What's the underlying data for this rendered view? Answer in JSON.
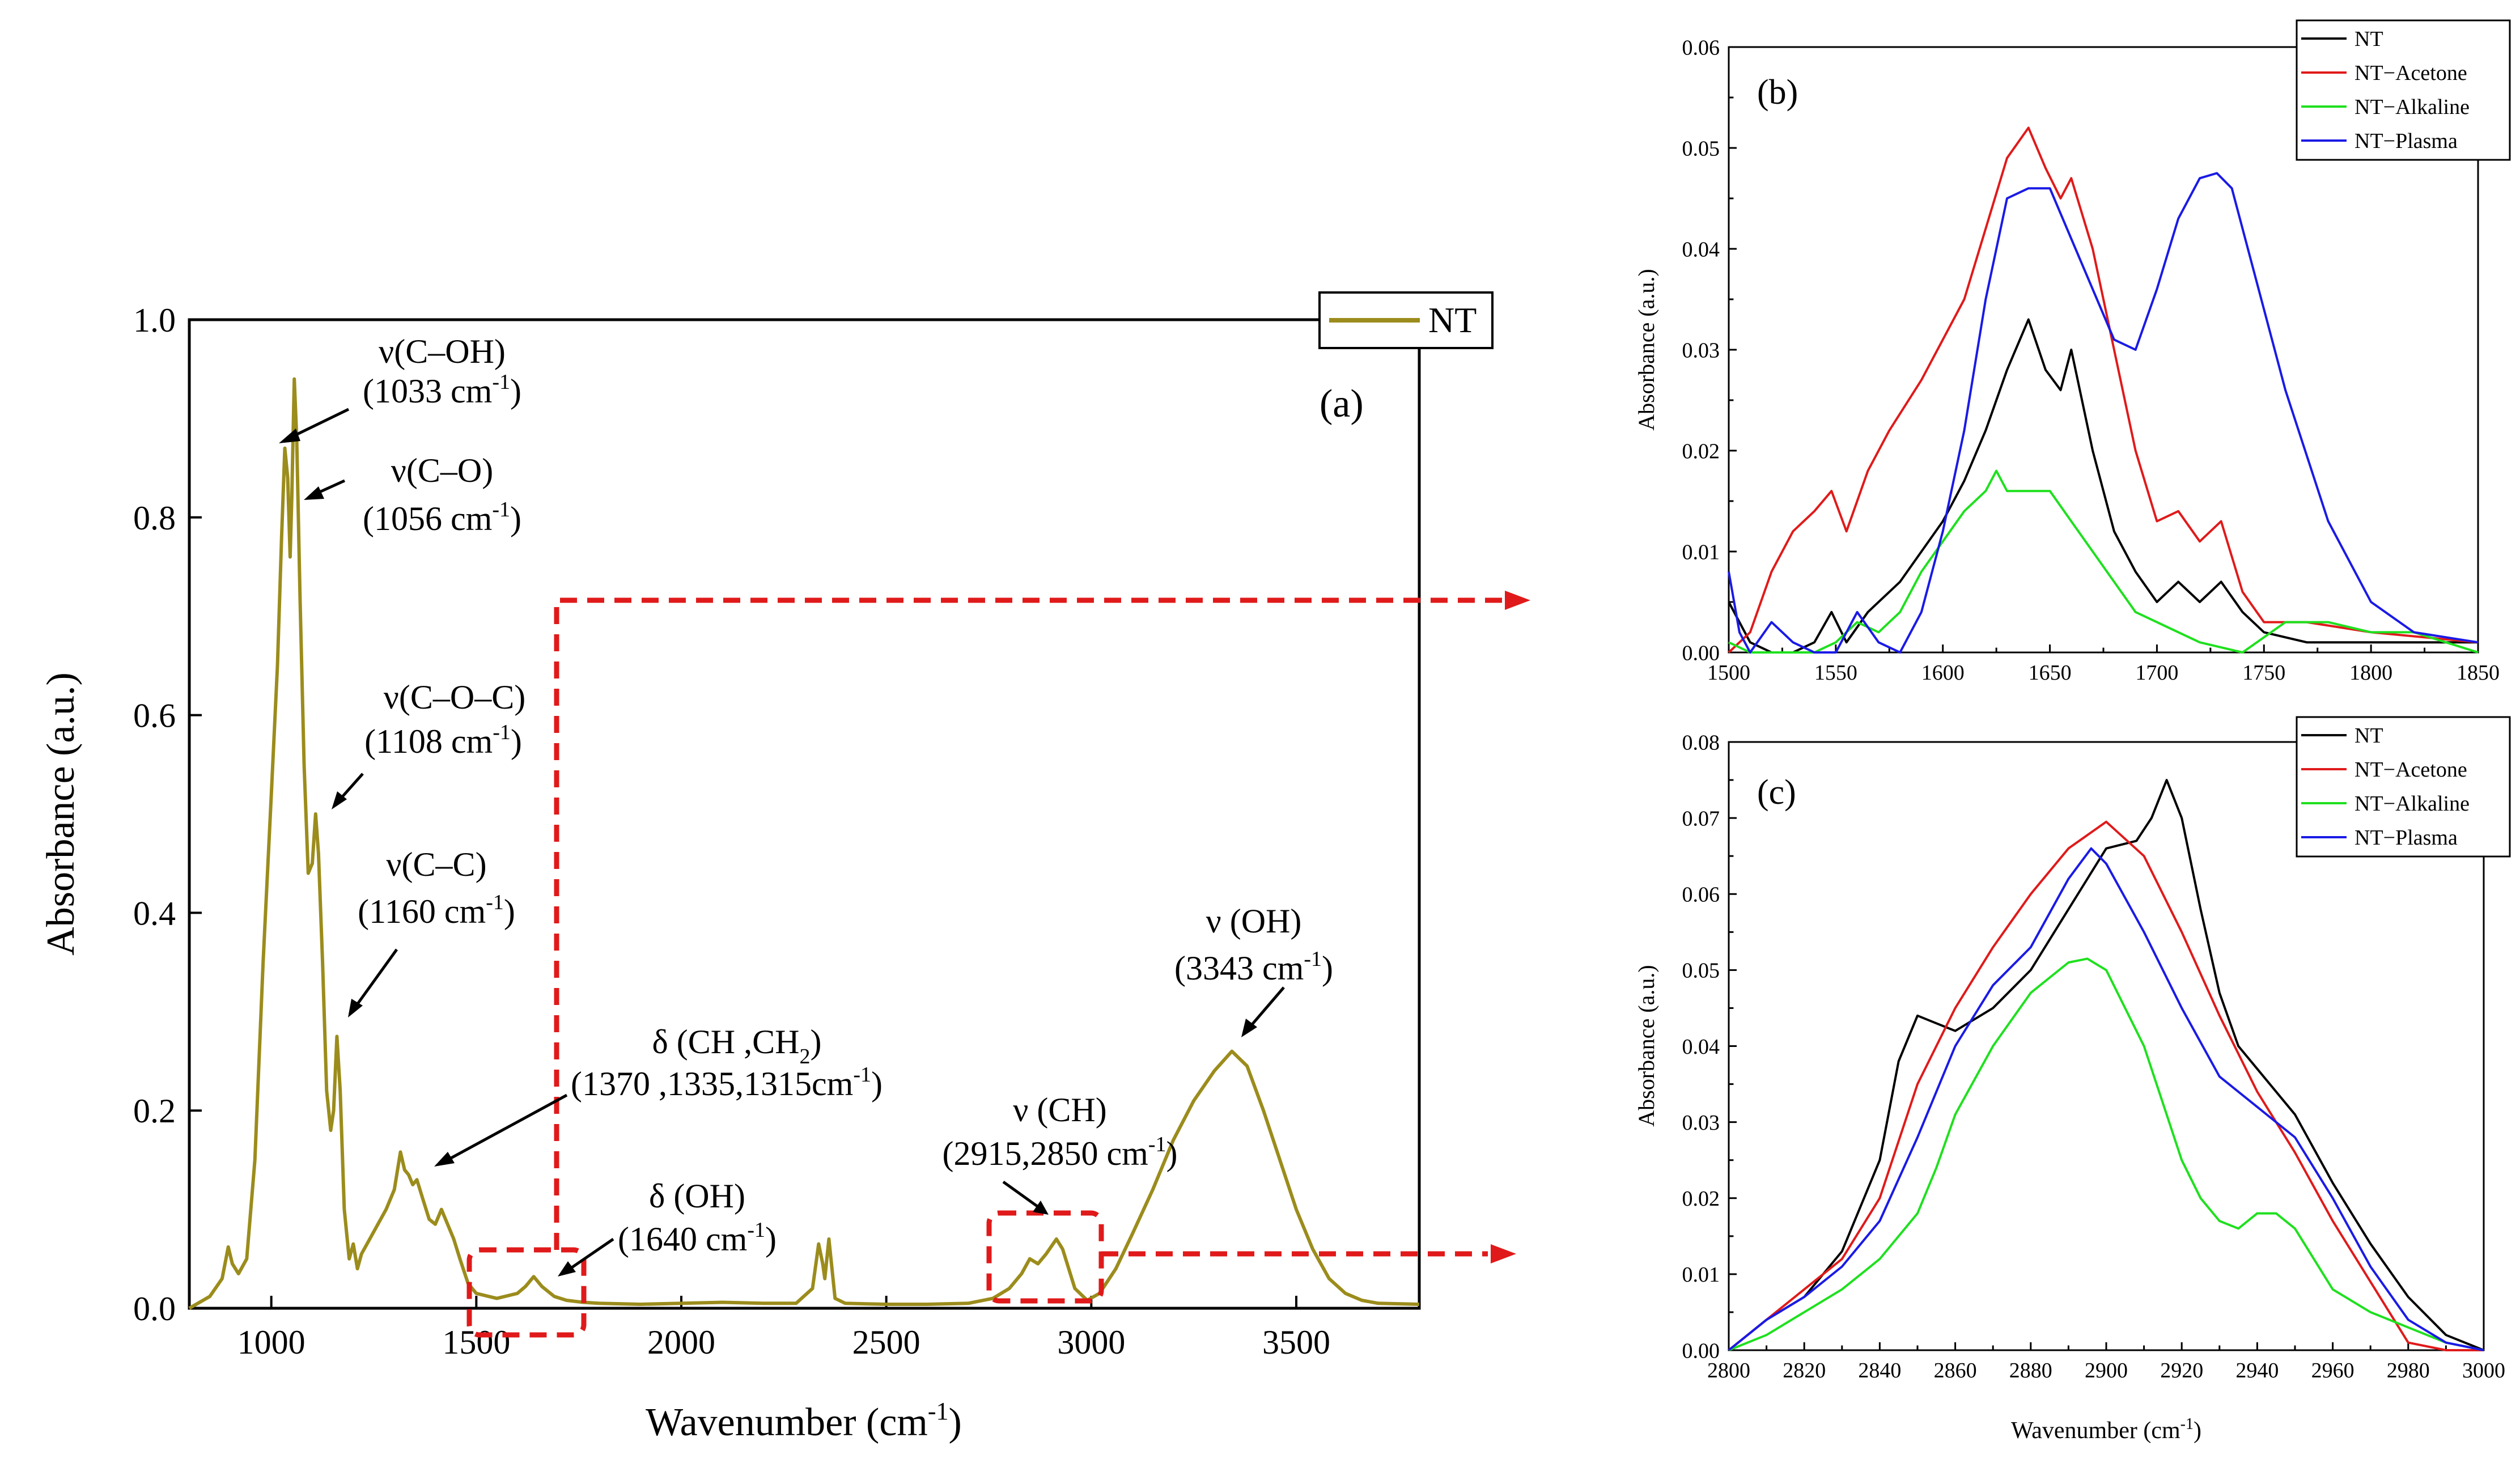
{
  "colors": {
    "nt_main": "#9b8c1c",
    "nt": "#000000",
    "nt_acetone": "#e01a1a",
    "nt_alkaline": "#1ee01e",
    "nt_plasma": "#1a1ae6",
    "zoom": "#e01a1a"
  },
  "chart_data": [
    {
      "id": "a",
      "type": "line",
      "panel_label": "(a)",
      "xlabel": "Wavenumber (cm",
      "xlabel_sup": "-1",
      "xlabel_close": ")",
      "ylabel": "Absorbance (a.u.)",
      "xlim": [
        800,
        3800
      ],
      "ylim": [
        0,
        1.0
      ],
      "xticks": [
        1000,
        1500,
        2000,
        2500,
        3000,
        3500
      ],
      "yticks": [
        0.0,
        0.2,
        0.4,
        0.6,
        0.8,
        1.0
      ],
      "xtick_labels": [
        "1000",
        "1500",
        "2000",
        "2500",
        "3000",
        "3500"
      ],
      "ytick_labels": [
        "0.0",
        "0.2",
        "0.4",
        "0.6",
        "0.8",
        "1.0"
      ],
      "legend": [
        "NT"
      ],
      "series": [
        {
          "name": "NT",
          "x": [
            800,
            850,
            880,
            895,
            905,
            920,
            940,
            960,
            980,
            1000,
            1015,
            1025,
            1033,
            1040,
            1046,
            1050,
            1056,
            1062,
            1070,
            1080,
            1090,
            1100,
            1108,
            1115,
            1125,
            1135,
            1145,
            1152,
            1160,
            1168,
            1178,
            1190,
            1200,
            1210,
            1220,
            1240,
            1260,
            1280,
            1300,
            1315,
            1325,
            1335,
            1345,
            1355,
            1370,
            1385,
            1400,
            1415,
            1430,
            1445,
            1460,
            1480,
            1500,
            1550,
            1600,
            1620,
            1640,
            1660,
            1690,
            1720,
            1760,
            1800,
            1900,
            2000,
            2100,
            2200,
            2280,
            2320,
            2335,
            2345,
            2350,
            2360,
            2375,
            2400,
            2500,
            2600,
            2700,
            2760,
            2800,
            2830,
            2850,
            2870,
            2890,
            2915,
            2930,
            2960,
            2990,
            3020,
            3060,
            3100,
            3150,
            3200,
            3250,
            3300,
            3343,
            3380,
            3420,
            3460,
            3500,
            3540,
            3580,
            3620,
            3660,
            3700,
            3800
          ],
          "values": [
            0.0,
            0.012,
            0.03,
            0.062,
            0.045,
            0.035,
            0.05,
            0.15,
            0.35,
            0.52,
            0.65,
            0.78,
            0.87,
            0.84,
            0.76,
            0.82,
            0.94,
            0.88,
            0.72,
            0.55,
            0.44,
            0.45,
            0.5,
            0.46,
            0.35,
            0.22,
            0.18,
            0.2,
            0.275,
            0.22,
            0.1,
            0.05,
            0.065,
            0.04,
            0.055,
            0.07,
            0.085,
            0.1,
            0.12,
            0.158,
            0.14,
            0.135,
            0.125,
            0.13,
            0.11,
            0.09,
            0.085,
            0.1,
            0.085,
            0.07,
            0.05,
            0.025,
            0.015,
            0.01,
            0.015,
            0.022,
            0.032,
            0.022,
            0.012,
            0.008,
            0.006,
            0.005,
            0.004,
            0.005,
            0.006,
            0.005,
            0.005,
            0.02,
            0.065,
            0.045,
            0.03,
            0.07,
            0.01,
            0.005,
            0.004,
            0.004,
            0.005,
            0.01,
            0.02,
            0.035,
            0.05,
            0.045,
            0.055,
            0.07,
            0.06,
            0.02,
            0.008,
            0.015,
            0.04,
            0.075,
            0.12,
            0.17,
            0.21,
            0.24,
            0.26,
            0.245,
            0.2,
            0.15,
            0.1,
            0.06,
            0.03,
            0.015,
            0.008,
            0.005,
            0.004
          ]
        }
      ],
      "annotations": [
        {
          "line1": "ν(C–OH)",
          "line2": "(1033 cm",
          "sup": "-1",
          "close": ")"
        },
        {
          "line1": "ν(C–O)",
          "line2": "(1056 cm",
          "sup": "-1",
          "close": ")"
        },
        {
          "line1": "ν(C–O–C)",
          "line2": "(1108 cm",
          "sup": "-1",
          "close": ")"
        },
        {
          "line1": "ν(C–C)",
          "line2": "(1160 cm",
          "sup": "-1",
          "close": ")"
        },
        {
          "line1": "δ (CH ,CH",
          "line1_sub": "2",
          "line1_close": ")",
          "line2": "(1370 ,1335,1315cm",
          "sup": "-1",
          "close": ")"
        },
        {
          "line1": "δ (OH)",
          "line2": "(1640 cm",
          "sup": "-1",
          "close": ")"
        },
        {
          "line1": "ν (CH)",
          "line2": "(2915,2850 cm",
          "sup": "-1",
          "close": ")"
        },
        {
          "line1": "ν (OH)",
          "line2": "(3343 cm",
          "sup": "-1",
          "close": ")"
        }
      ]
    },
    {
      "id": "b",
      "type": "line",
      "panel_label": "(b)",
      "xlabel": "",
      "ylabel": "Absorbance (a.u.)",
      "xlim": [
        1500,
        1850
      ],
      "ylim": [
        0,
        0.06
      ],
      "xticks": [
        1500,
        1550,
        1600,
        1650,
        1700,
        1750,
        1800,
        1850
      ],
      "yticks": [
        0.0,
        0.01,
        0.02,
        0.03,
        0.04,
        0.05,
        0.06
      ],
      "xtick_labels": [
        "1500",
        "1550",
        "1600",
        "1650",
        "1700",
        "1750",
        "1800",
        "1850"
      ],
      "ytick_labels": [
        "0.00",
        "0.01",
        "0.02",
        "0.03",
        "0.04",
        "0.05",
        "0.06"
      ],
      "legend": [
        "NT",
        "NT−Acetone",
        "NT−Alkaline",
        "NT−Plasma"
      ],
      "series": [
        {
          "name": "NT",
          "x": [
            1500,
            1510,
            1520,
            1530,
            1540,
            1548,
            1555,
            1565,
            1580,
            1600,
            1610,
            1620,
            1630,
            1640,
            1648,
            1655,
            1660,
            1670,
            1680,
            1690,
            1700,
            1710,
            1720,
            1730,
            1740,
            1750,
            1770,
            1800,
            1850
          ],
          "values": [
            0.005,
            0.001,
            0.0,
            0.0,
            0.001,
            0.004,
            0.001,
            0.004,
            0.007,
            0.013,
            0.017,
            0.022,
            0.028,
            0.033,
            0.028,
            0.026,
            0.03,
            0.02,
            0.012,
            0.008,
            0.005,
            0.007,
            0.005,
            0.007,
            0.004,
            0.002,
            0.001,
            0.001,
            0.001
          ]
        },
        {
          "name": "NT−Acetone",
          "x": [
            1500,
            1510,
            1520,
            1530,
            1540,
            1548,
            1555,
            1565,
            1575,
            1590,
            1600,
            1610,
            1620,
            1630,
            1640,
            1648,
            1655,
            1660,
            1670,
            1680,
            1690,
            1700,
            1710,
            1720,
            1730,
            1740,
            1750,
            1770,
            1800,
            1850
          ],
          "values": [
            0.0,
            0.002,
            0.008,
            0.012,
            0.014,
            0.016,
            0.012,
            0.018,
            0.022,
            0.027,
            0.031,
            0.035,
            0.042,
            0.049,
            0.052,
            0.048,
            0.045,
            0.047,
            0.04,
            0.03,
            0.02,
            0.013,
            0.014,
            0.011,
            0.013,
            0.006,
            0.003,
            0.003,
            0.002,
            0.001
          ]
        },
        {
          "name": "NT−Alkaline",
          "x": [
            1500,
            1510,
            1520,
            1530,
            1540,
            1550,
            1560,
            1570,
            1580,
            1590,
            1600,
            1610,
            1620,
            1625,
            1630,
            1640,
            1650,
            1660,
            1670,
            1680,
            1690,
            1700,
            1720,
            1740,
            1760,
            1780,
            1800,
            1820,
            1850
          ],
          "values": [
            0.001,
            0.0,
            0.0,
            0.0,
            0.0,
            0.001,
            0.003,
            0.002,
            0.004,
            0.008,
            0.011,
            0.014,
            0.016,
            0.018,
            0.016,
            0.016,
            0.016,
            0.013,
            0.01,
            0.007,
            0.004,
            0.003,
            0.001,
            0.0,
            0.003,
            0.003,
            0.002,
            0.002,
            0.0
          ]
        },
        {
          "name": "NT−Plasma",
          "x": [
            1500,
            1505,
            1510,
            1520,
            1530,
            1540,
            1550,
            1560,
            1570,
            1580,
            1590,
            1600,
            1610,
            1620,
            1630,
            1640,
            1650,
            1660,
            1670,
            1680,
            1690,
            1700,
            1710,
            1720,
            1728,
            1735,
            1745,
            1760,
            1780,
            1800,
            1820,
            1850
          ],
          "values": [
            0.008,
            0.002,
            0.0,
            0.003,
            0.001,
            0.0,
            0.0,
            0.004,
            0.001,
            0.0,
            0.004,
            0.012,
            0.022,
            0.035,
            0.045,
            0.046,
            0.046,
            0.041,
            0.036,
            0.031,
            0.03,
            0.036,
            0.043,
            0.047,
            0.0475,
            0.046,
            0.038,
            0.026,
            0.013,
            0.005,
            0.002,
            0.001
          ]
        }
      ]
    },
    {
      "id": "c",
      "type": "line",
      "panel_label": "(c)",
      "xlabel": "Wavenumber (cm",
      "xlabel_sup": "-1",
      "xlabel_close": ")",
      "ylabel": "Absorbance (a.u.)",
      "xlim": [
        2800,
        3000
      ],
      "ylim": [
        0,
        0.08
      ],
      "xticks": [
        2800,
        2820,
        2840,
        2860,
        2880,
        2900,
        2920,
        2940,
        2960,
        2980,
        3000
      ],
      "yticks": [
        0.0,
        0.01,
        0.02,
        0.03,
        0.04,
        0.05,
        0.06,
        0.07,
        0.08
      ],
      "xtick_labels": [
        "2800",
        "2820",
        "2840",
        "2860",
        "2880",
        "2900",
        "2920",
        "2940",
        "2960",
        "2980",
        "3000"
      ],
      "ytick_labels": [
        "0.00",
        "0.01",
        "0.02",
        "0.03",
        "0.04",
        "0.05",
        "0.06",
        "0.07",
        "0.08"
      ],
      "legend": [
        "NT",
        "NT−Acetone",
        "NT−Alkaline",
        "NT−Plasma"
      ],
      "series": [
        {
          "name": "NT",
          "x": [
            2800,
            2810,
            2820,
            2830,
            2840,
            2845,
            2850,
            2855,
            2860,
            2870,
            2880,
            2890,
            2900,
            2908,
            2912,
            2916,
            2920,
            2925,
            2930,
            2935,
            2940,
            2950,
            2960,
            2970,
            2980,
            2990,
            3000
          ],
          "values": [
            0.0,
            0.004,
            0.007,
            0.013,
            0.025,
            0.038,
            0.044,
            0.043,
            0.042,
            0.045,
            0.05,
            0.058,
            0.066,
            0.067,
            0.07,
            0.075,
            0.07,
            0.058,
            0.047,
            0.04,
            0.037,
            0.031,
            0.022,
            0.014,
            0.007,
            0.002,
            0.0
          ]
        },
        {
          "name": "NT−Acetone",
          "x": [
            2800,
            2810,
            2820,
            2830,
            2840,
            2850,
            2860,
            2870,
            2880,
            2890,
            2900,
            2910,
            2920,
            2930,
            2940,
            2950,
            2960,
            2970,
            2980,
            2990,
            3000
          ],
          "values": [
            0.0,
            0.004,
            0.008,
            0.012,
            0.02,
            0.035,
            0.045,
            0.053,
            0.06,
            0.066,
            0.0695,
            0.065,
            0.055,
            0.044,
            0.034,
            0.026,
            0.017,
            0.009,
            0.001,
            0.0,
            0.0
          ]
        },
        {
          "name": "NT−Alkaline",
          "x": [
            2800,
            2810,
            2820,
            2830,
            2840,
            2850,
            2855,
            2860,
            2870,
            2880,
            2890,
            2895,
            2900,
            2910,
            2920,
            2925,
            2930,
            2935,
            2940,
            2945,
            2950,
            2960,
            2970,
            2980,
            2990,
            3000
          ],
          "values": [
            0.0,
            0.002,
            0.005,
            0.008,
            0.012,
            0.018,
            0.024,
            0.031,
            0.04,
            0.047,
            0.051,
            0.0515,
            0.05,
            0.04,
            0.025,
            0.02,
            0.017,
            0.016,
            0.018,
            0.018,
            0.016,
            0.008,
            0.005,
            0.003,
            0.001,
            0.0
          ]
        },
        {
          "name": "NT−Plasma",
          "x": [
            2800,
            2810,
            2820,
            2830,
            2840,
            2850,
            2860,
            2870,
            2880,
            2890,
            2896,
            2900,
            2910,
            2920,
            2930,
            2940,
            2950,
            2960,
            2970,
            2980,
            2990,
            3000
          ],
          "values": [
            0.0,
            0.004,
            0.007,
            0.011,
            0.017,
            0.028,
            0.04,
            0.048,
            0.053,
            0.062,
            0.066,
            0.064,
            0.055,
            0.045,
            0.036,
            0.032,
            0.028,
            0.02,
            0.011,
            0.004,
            0.001,
            0.0
          ]
        }
      ]
    }
  ]
}
